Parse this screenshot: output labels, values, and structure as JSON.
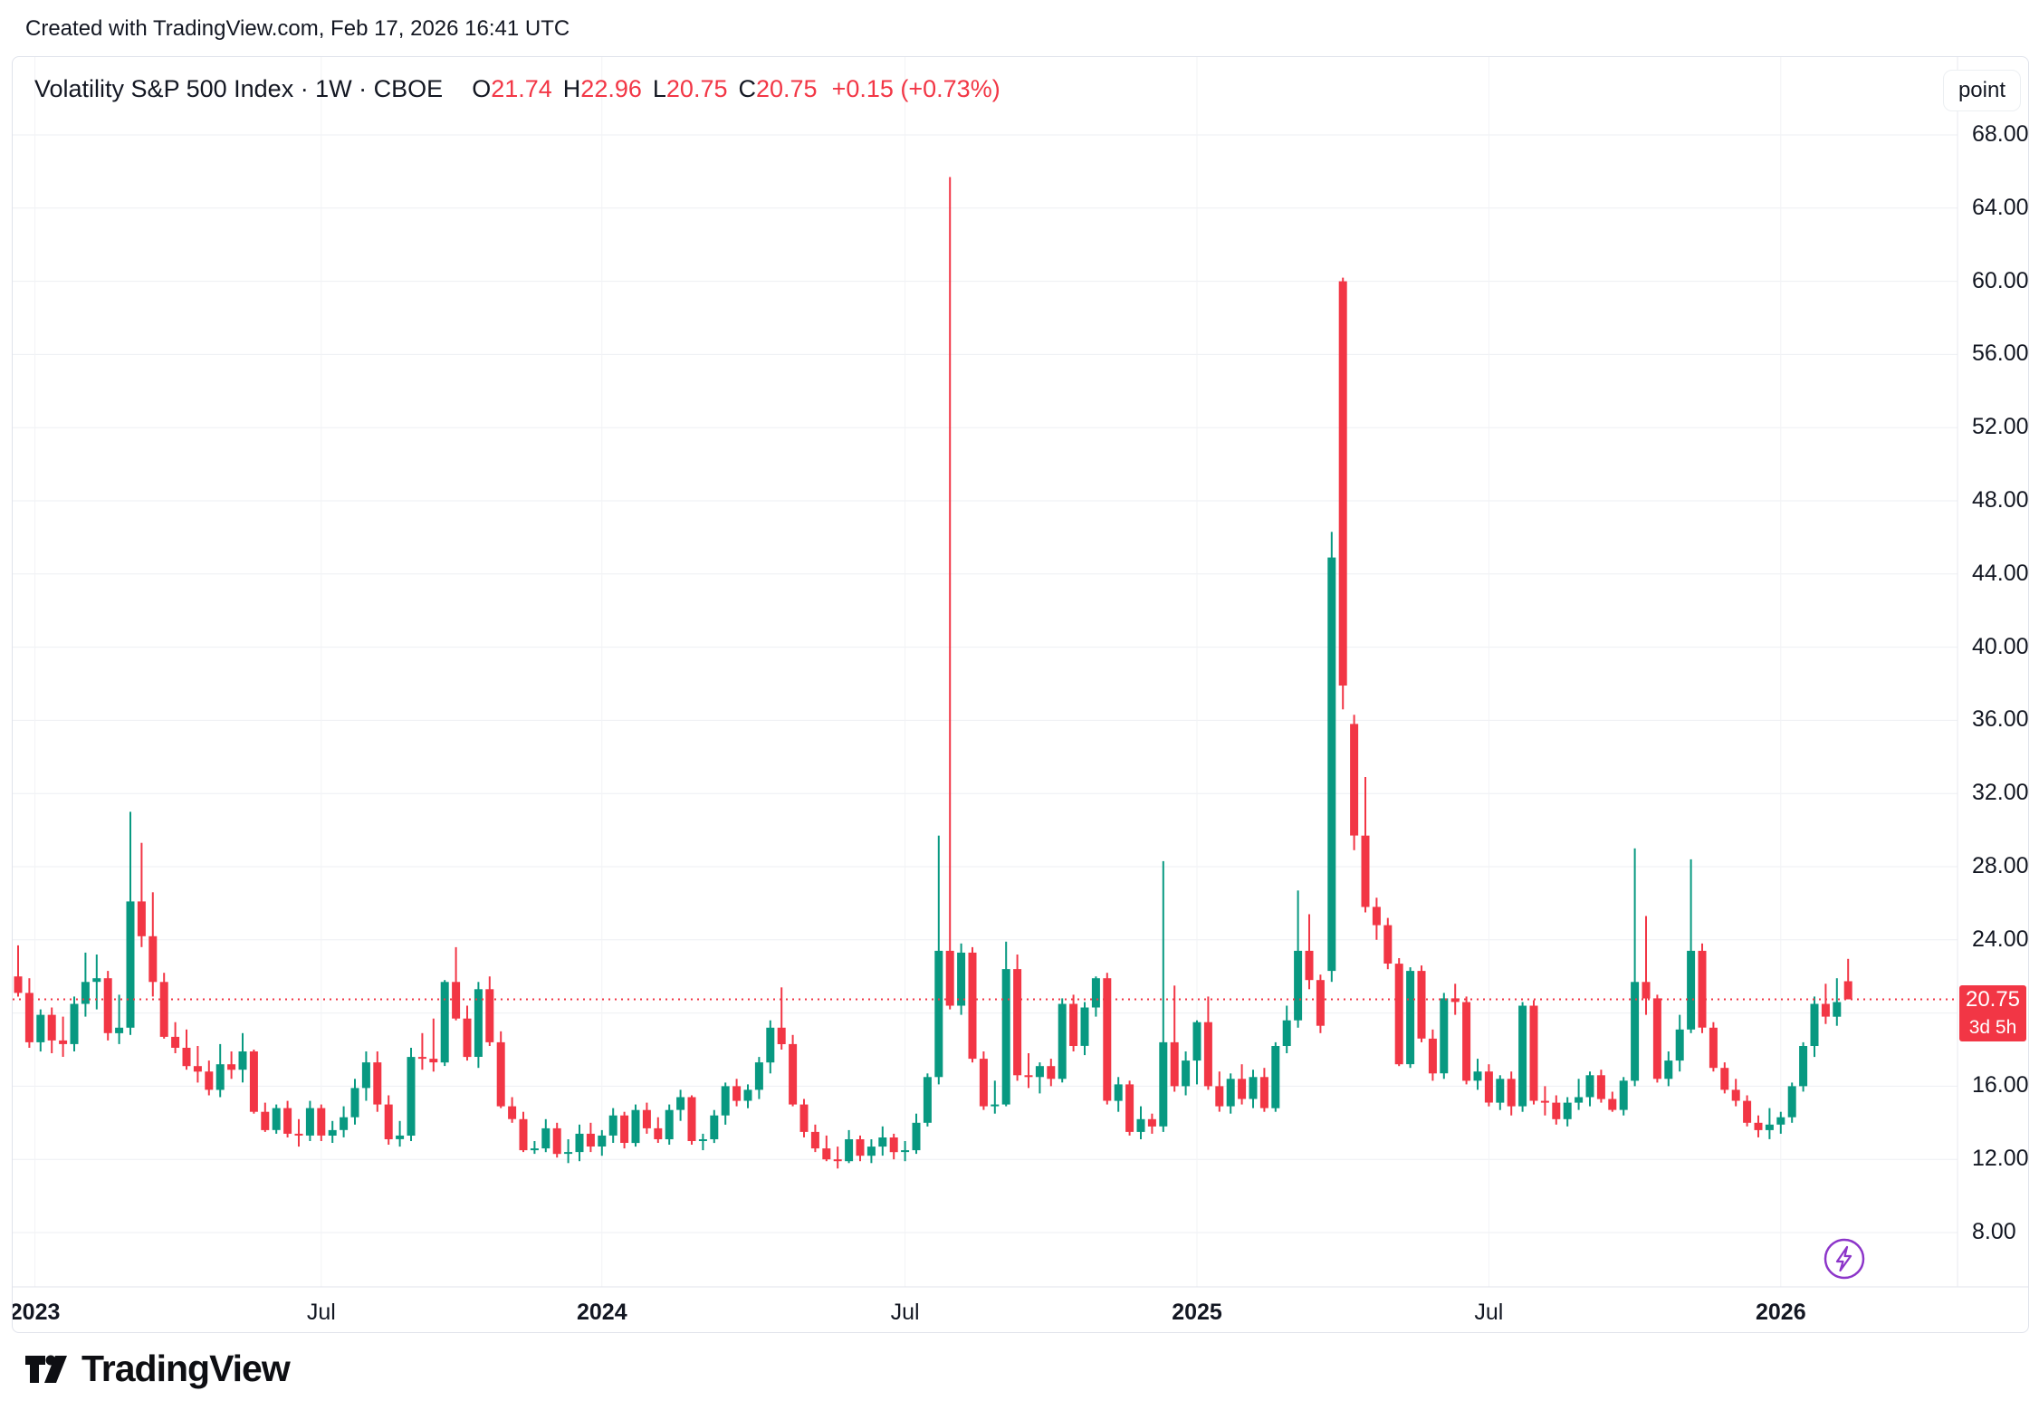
{
  "page": {
    "attribution": "Created with TradingView.com, Feb 17, 2026 16:41 UTC",
    "brand": "TradingView"
  },
  "header": {
    "symbol_title": "Volatility S&P 500 Index · 1W · CBOE",
    "ohlc": {
      "open_label": "O",
      "open": "21.74",
      "high_label": "H",
      "high": "22.96",
      "low_label": "L",
      "low": "20.75",
      "close_label": "C",
      "close": "20.75",
      "change": "+0.15 (+0.73%)"
    }
  },
  "price_axis": {
    "unit_label": "point",
    "last_price_badge": {
      "price": "20.75",
      "countdown": "3d 5h",
      "color": "#f23645"
    }
  },
  "chart_data": {
    "type": "candlestick",
    "title": "Volatility S&P 500 Index",
    "interval": "1W",
    "exchange": "CBOE",
    "unit": "point",
    "up_color": "#089981",
    "down_color": "#f23645",
    "grid": true,
    "ylim": [
      8,
      68
    ],
    "x_range": [
      "Jan 2023",
      "Feb 2026"
    ],
    "last_price_line": {
      "value": 20.75,
      "color": "#f23645",
      "style": "dotted"
    },
    "price_ticks": [
      {
        "label": "68.00",
        "value": 68
      },
      {
        "label": "64.00",
        "value": 64
      },
      {
        "label": "60.00",
        "value": 60
      },
      {
        "label": "56.00",
        "value": 56
      },
      {
        "label": "52.00",
        "value": 52
      },
      {
        "label": "48.00",
        "value": 48
      },
      {
        "label": "44.00",
        "value": 44
      },
      {
        "label": "40.00",
        "value": 40
      },
      {
        "label": "36.00",
        "value": 36
      },
      {
        "label": "32.00",
        "value": 32
      },
      {
        "label": "28.00",
        "value": 28
      },
      {
        "label": "24.00",
        "value": 24
      },
      {
        "label": "20.00",
        "value": 20,
        "hidden": true
      },
      {
        "label": "16.00",
        "value": 16
      },
      {
        "label": "12.00",
        "value": 12
      },
      {
        "label": "8.00",
        "value": 8
      }
    ],
    "time_ticks": [
      {
        "label": "2023",
        "idx": 1.5,
        "major": true
      },
      {
        "label": "Jul",
        "idx": 27,
        "major": false
      },
      {
        "label": "2024",
        "idx": 52,
        "major": true
      },
      {
        "label": "Jul",
        "idx": 79,
        "major": false
      },
      {
        "label": "2025",
        "idx": 105,
        "major": true
      },
      {
        "label": "Jul",
        "idx": 131,
        "major": false
      },
      {
        "label": "2026",
        "idx": 157,
        "major": true
      }
    ],
    "candles": [
      [
        22.0,
        23.7,
        20.9,
        21.1
      ],
      [
        21.1,
        21.9,
        18.1,
        18.4
      ],
      [
        18.4,
        20.2,
        17.9,
        19.9
      ],
      [
        19.9,
        20.3,
        17.8,
        18.5
      ],
      [
        18.5,
        19.8,
        17.6,
        18.3
      ],
      [
        18.3,
        20.9,
        17.9,
        20.5
      ],
      [
        20.5,
        23.3,
        19.8,
        21.7
      ],
      [
        21.7,
        23.2,
        20.2,
        21.9
      ],
      [
        21.9,
        22.3,
        18.5,
        18.9
      ],
      [
        18.9,
        21.0,
        18.3,
        19.2
      ],
      [
        19.2,
        31.0,
        18.8,
        26.1
      ],
      [
        26.1,
        29.3,
        23.6,
        24.2
      ],
      [
        24.2,
        26.6,
        20.9,
        21.7
      ],
      [
        21.7,
        22.2,
        18.6,
        18.7
      ],
      [
        18.7,
        19.5,
        17.8,
        18.1
      ],
      [
        18.1,
        19.1,
        16.9,
        17.1
      ],
      [
        17.1,
        18.2,
        16.2,
        16.8
      ],
      [
        16.8,
        17.4,
        15.5,
        15.8
      ],
      [
        15.8,
        18.3,
        15.4,
        17.2
      ],
      [
        17.2,
        17.9,
        16.4,
        16.9
      ],
      [
        16.9,
        18.9,
        16.2,
        17.9
      ],
      [
        17.9,
        18.0,
        14.5,
        14.6
      ],
      [
        14.6,
        15.1,
        13.5,
        13.6
      ],
      [
        13.6,
        15.0,
        13.4,
        14.8
      ],
      [
        14.8,
        15.2,
        13.2,
        13.4
      ],
      [
        13.4,
        14.2,
        12.7,
        13.3
      ],
      [
        13.3,
        15.2,
        13.0,
        14.8
      ],
      [
        14.8,
        15.0,
        13.0,
        13.3
      ],
      [
        13.3,
        14.1,
        12.9,
        13.6
      ],
      [
        13.6,
        14.9,
        13.2,
        14.3
      ],
      [
        14.3,
        16.4,
        13.9,
        15.9
      ],
      [
        15.9,
        17.9,
        15.2,
        17.3
      ],
      [
        17.3,
        17.9,
        14.6,
        15.0
      ],
      [
        15.0,
        15.5,
        12.8,
        13.1
      ],
      [
        13.1,
        14.1,
        12.7,
        13.3
      ],
      [
        13.3,
        18.1,
        13.0,
        17.6
      ],
      [
        17.6,
        18.9,
        16.9,
        17.5
      ],
      [
        17.5,
        19.7,
        16.8,
        17.3
      ],
      [
        17.3,
        21.8,
        17.1,
        21.7
      ],
      [
        21.7,
        23.6,
        19.6,
        19.7
      ],
      [
        19.7,
        20.4,
        17.4,
        17.6
      ],
      [
        17.6,
        21.7,
        17.0,
        21.3
      ],
      [
        21.3,
        22.0,
        18.2,
        18.4
      ],
      [
        18.4,
        19.0,
        14.8,
        14.9
      ],
      [
        14.9,
        15.4,
        14.0,
        14.2
      ],
      [
        14.2,
        14.6,
        12.4,
        12.5
      ],
      [
        12.5,
        13.0,
        12.3,
        12.6
      ],
      [
        12.6,
        14.2,
        12.4,
        13.7
      ],
      [
        13.7,
        14.0,
        12.1,
        12.3
      ],
      [
        12.3,
        13.1,
        11.8,
        12.4
      ],
      [
        12.4,
        13.9,
        11.9,
        13.4
      ],
      [
        13.4,
        14.0,
        12.4,
        12.7
      ],
      [
        12.7,
        13.6,
        12.2,
        13.3
      ],
      [
        13.3,
        14.8,
        12.9,
        14.4
      ],
      [
        14.4,
        14.6,
        12.6,
        12.9
      ],
      [
        12.9,
        15.0,
        12.7,
        14.7
      ],
      [
        14.7,
        15.1,
        13.4,
        13.7
      ],
      [
        13.7,
        14.3,
        12.9,
        13.1
      ],
      [
        13.1,
        15.0,
        12.8,
        14.7
      ],
      [
        14.7,
        15.8,
        14.1,
        15.4
      ],
      [
        15.4,
        15.5,
        12.8,
        13.0
      ],
      [
        13.0,
        13.4,
        12.5,
        13.1
      ],
      [
        13.1,
        14.7,
        12.9,
        14.4
      ],
      [
        14.4,
        16.2,
        13.9,
        16.0
      ],
      [
        16.0,
        16.4,
        14.9,
        15.2
      ],
      [
        15.2,
        16.1,
        14.8,
        15.8
      ],
      [
        15.8,
        17.6,
        15.3,
        17.3
      ],
      [
        17.3,
        19.6,
        16.7,
        19.2
      ],
      [
        19.2,
        21.4,
        18.0,
        18.3
      ],
      [
        18.3,
        18.8,
        14.9,
        15.0
      ],
      [
        15.0,
        15.3,
        13.2,
        13.5
      ],
      [
        13.5,
        13.9,
        12.4,
        12.6
      ],
      [
        12.6,
        13.3,
        11.9,
        12.0
      ],
      [
        12.0,
        12.7,
        11.5,
        11.9
      ],
      [
        11.9,
        13.6,
        11.8,
        13.1
      ],
      [
        13.1,
        13.3,
        11.9,
        12.2
      ],
      [
        12.2,
        13.1,
        11.8,
        12.7
      ],
      [
        12.7,
        13.8,
        12.2,
        13.2
      ],
      [
        13.2,
        13.4,
        12.0,
        12.4
      ],
      [
        12.4,
        13.0,
        11.9,
        12.5
      ],
      [
        12.5,
        14.5,
        12.3,
        14.0
      ],
      [
        14.0,
        16.7,
        13.8,
        16.5
      ],
      [
        16.5,
        29.7,
        16.1,
        23.4
      ],
      [
        23.4,
        65.7,
        20.2,
        20.4
      ],
      [
        20.4,
        23.8,
        19.9,
        23.3
      ],
      [
        23.3,
        23.6,
        17.3,
        17.5
      ],
      [
        17.5,
        17.9,
        14.7,
        14.9
      ],
      [
        14.9,
        16.3,
        14.5,
        15.0
      ],
      [
        15.0,
        23.9,
        14.9,
        22.4
      ],
      [
        22.4,
        23.2,
        16.3,
        16.6
      ],
      [
        16.6,
        17.8,
        15.9,
        16.5
      ],
      [
        16.5,
        17.3,
        15.6,
        17.1
      ],
      [
        17.1,
        17.5,
        16.0,
        16.4
      ],
      [
        16.4,
        20.8,
        16.2,
        20.5
      ],
      [
        20.5,
        21.0,
        17.9,
        18.2
      ],
      [
        18.2,
        20.6,
        17.7,
        20.3
      ],
      [
        20.3,
        22.0,
        19.8,
        21.9
      ],
      [
        21.9,
        22.2,
        15.0,
        15.2
      ],
      [
        15.2,
        16.5,
        14.6,
        16.1
      ],
      [
        16.1,
        16.3,
        13.3,
        13.5
      ],
      [
        13.5,
        14.9,
        13.1,
        14.2
      ],
      [
        14.2,
        14.5,
        13.4,
        13.8
      ],
      [
        13.8,
        28.3,
        13.5,
        18.4
      ],
      [
        18.4,
        21.5,
        15.7,
        16.0
      ],
      [
        16.0,
        17.9,
        15.5,
        17.4
      ],
      [
        17.4,
        19.6,
        16.1,
        19.5
      ],
      [
        19.5,
        20.9,
        15.8,
        16.0
      ],
      [
        16.0,
        16.8,
        14.6,
        14.9
      ],
      [
        14.9,
        16.7,
        14.5,
        16.4
      ],
      [
        16.4,
        17.2,
        15.0,
        15.3
      ],
      [
        15.3,
        16.9,
        14.8,
        16.5
      ],
      [
        16.5,
        17.0,
        14.6,
        14.8
      ],
      [
        14.8,
        18.4,
        14.6,
        18.2
      ],
      [
        18.2,
        20.4,
        17.8,
        19.6
      ],
      [
        19.6,
        26.7,
        19.2,
        23.4
      ],
      [
        23.4,
        25.4,
        21.3,
        21.8
      ],
      [
        21.8,
        22.1,
        18.9,
        19.3
      ],
      [
        22.3,
        46.3,
        21.7,
        44.9
      ],
      [
        60.0,
        60.2,
        36.6,
        37.9
      ],
      [
        35.8,
        36.3,
        28.9,
        29.7
      ],
      [
        29.7,
        32.9,
        25.5,
        25.8
      ],
      [
        25.8,
        26.3,
        24.0,
        24.8
      ],
      [
        24.8,
        25.2,
        22.4,
        22.7
      ],
      [
        22.7,
        23.0,
        17.1,
        17.2
      ],
      [
        17.2,
        22.5,
        17.0,
        22.3
      ],
      [
        22.3,
        22.6,
        18.4,
        18.6
      ],
      [
        18.6,
        19.1,
        16.3,
        16.7
      ],
      [
        16.7,
        21.1,
        16.4,
        20.8
      ],
      [
        20.8,
        21.6,
        19.9,
        20.6
      ],
      [
        20.6,
        20.9,
        16.1,
        16.3
      ],
      [
        16.3,
        17.5,
        15.8,
        16.8
      ],
      [
        16.8,
        17.2,
        14.9,
        15.1
      ],
      [
        15.1,
        16.6,
        14.7,
        16.4
      ],
      [
        16.4,
        16.8,
        14.4,
        14.9
      ],
      [
        14.9,
        20.6,
        14.6,
        20.4
      ],
      [
        20.4,
        20.7,
        15.0,
        15.2
      ],
      [
        15.2,
        16.0,
        14.4,
        15.1
      ],
      [
        15.1,
        15.5,
        13.9,
        14.2
      ],
      [
        14.2,
        15.4,
        13.8,
        15.1
      ],
      [
        15.1,
        16.4,
        14.7,
        15.4
      ],
      [
        15.4,
        16.8,
        14.9,
        16.6
      ],
      [
        16.6,
        16.9,
        15.1,
        15.3
      ],
      [
        15.3,
        15.7,
        14.6,
        14.7
      ],
      [
        14.7,
        16.5,
        14.4,
        16.3
      ],
      [
        16.3,
        29.0,
        16.0,
        21.7
      ],
      [
        21.7,
        25.3,
        19.9,
        20.8
      ],
      [
        20.8,
        21.0,
        16.2,
        16.4
      ],
      [
        16.4,
        17.9,
        16.0,
        17.4
      ],
      [
        17.4,
        19.9,
        16.8,
        19.1
      ],
      [
        19.1,
        28.4,
        18.9,
        23.4
      ],
      [
        23.4,
        23.8,
        18.9,
        19.2
      ],
      [
        19.2,
        19.5,
        16.8,
        17.0
      ],
      [
        17.0,
        17.3,
        15.6,
        15.8
      ],
      [
        15.8,
        16.4,
        14.9,
        15.2
      ],
      [
        15.2,
        15.5,
        13.8,
        14.0
      ],
      [
        14.0,
        14.4,
        13.2,
        13.6
      ],
      [
        13.6,
        14.8,
        13.1,
        13.9
      ],
      [
        13.9,
        14.6,
        13.4,
        14.3
      ],
      [
        14.3,
        16.2,
        14.0,
        16.0
      ],
      [
        16.0,
        18.4,
        15.7,
        18.2
      ],
      [
        18.2,
        20.9,
        17.6,
        20.5
      ],
      [
        20.5,
        21.6,
        19.4,
        19.8
      ],
      [
        19.8,
        21.9,
        19.3,
        20.6
      ],
      [
        21.74,
        22.96,
        20.75,
        20.75
      ]
    ]
  }
}
